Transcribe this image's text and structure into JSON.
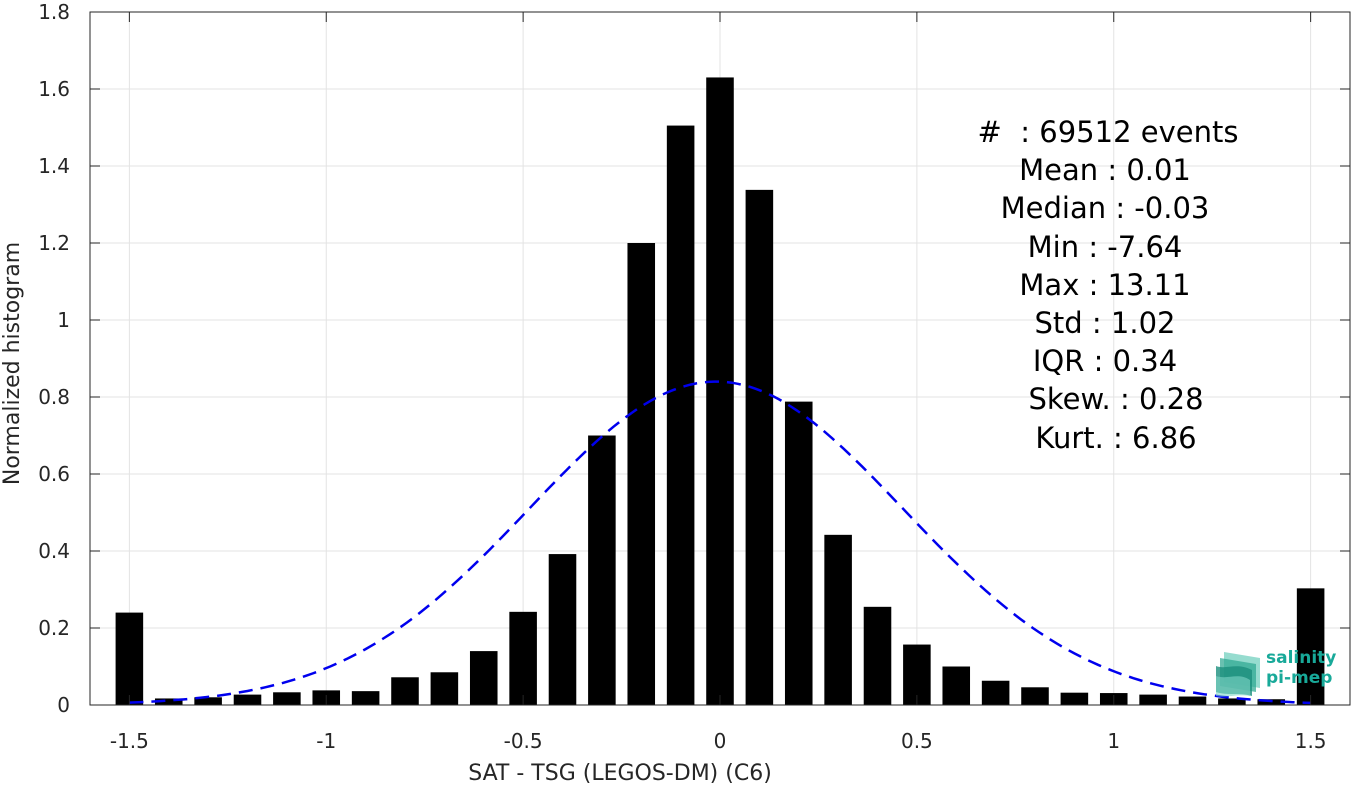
{
  "chart_data": {
    "type": "bar",
    "xlabel": "SAT - TSG (LEGOS-DM) (C6)",
    "ylabel": "Normalized histogram",
    "xlim": [
      -1.6,
      1.6
    ],
    "ylim": [
      0,
      1.8
    ],
    "xticks": [
      -1.5,
      -1,
      -0.5,
      0,
      0.5,
      1,
      1.5
    ],
    "xtick_labels": [
      "-1.5",
      "-1",
      "-0.5",
      "0",
      "0.5",
      "1",
      "1.5"
    ],
    "yticks": [
      0,
      0.2,
      0.4,
      0.6,
      0.8,
      1,
      1.2,
      1.4,
      1.6,
      1.8
    ],
    "ytick_labels": [
      "0",
      "0.2",
      "0.4",
      "0.6",
      "0.8",
      "1",
      "1.2",
      "1.4",
      "1.6",
      "1.8"
    ],
    "grid": true,
    "bin_width": 0.1,
    "bar_color": "#000000",
    "x": [
      -1.5,
      -1.4,
      -1.3,
      -1.2,
      -1.1,
      -1.0,
      -0.9,
      -0.8,
      -0.7,
      -0.6,
      -0.5,
      -0.4,
      -0.3,
      -0.2,
      -0.1,
      0.0,
      0.1,
      0.2,
      0.3,
      0.4,
      0.5,
      0.6,
      0.7,
      0.8,
      0.9,
      1.0,
      1.1,
      1.2,
      1.3,
      1.4,
      1.5
    ],
    "values": [
      0.24,
      0.017,
      0.02,
      0.027,
      0.033,
      0.038,
      0.036,
      0.072,
      0.085,
      0.14,
      0.242,
      0.392,
      0.7,
      1.2,
      1.505,
      1.63,
      1.338,
      0.788,
      0.442,
      0.255,
      0.157,
      0.1,
      0.063,
      0.046,
      0.032,
      0.031,
      0.027,
      0.022,
      0.017,
      0.015,
      0.303
    ],
    "fit": {
      "type": "gaussian",
      "mean": -0.01,
      "std": 0.475,
      "peak": 0.84,
      "color": "#0000ee",
      "style": "dashed",
      "x_range": [
        -1.5,
        1.5
      ]
    }
  },
  "stats": {
    "line1": "#  : 69512 events",
    "line2": "Mean : 0.01",
    "line3": "Median : -0.03",
    "line4": "Min : -7.64",
    "line5": "Max : 13.11",
    "line6": "Std : 1.02",
    "line7": "IQR : 0.34",
    "line8": "Skew. : 0.28",
    "line9": "Kurt. : 6.86"
  },
  "logo": {
    "line1": "salinity",
    "line2": "pi-mep"
  }
}
